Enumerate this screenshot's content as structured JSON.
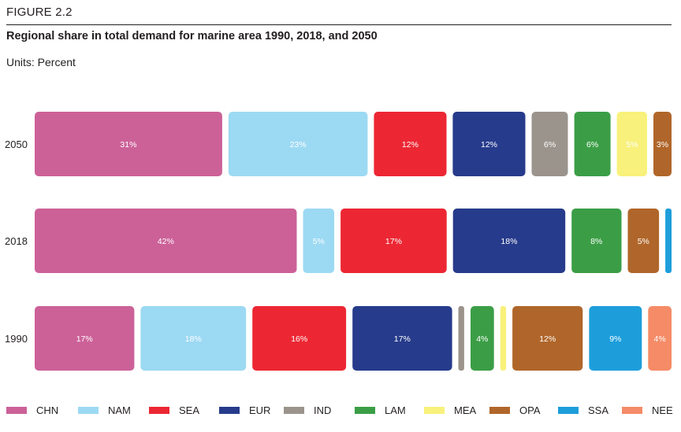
{
  "figure": {
    "label": "FIGURE 2.2",
    "title": "Regional share in total demand for marine area 1990, 2018, and 2050",
    "units": "Units: Percent"
  },
  "chart_data": {
    "type": "bar",
    "orientation": "horizontal-stacked",
    "title": "Regional share in total demand for marine area 1990, 2018, and 2050",
    "units": "Percent",
    "categories": [
      "2050",
      "2018",
      "1990"
    ],
    "series": [
      {
        "name": "CHN",
        "color": "#cc6198",
        "values": [
          31,
          42,
          17
        ],
        "labels": [
          "31%",
          "42%",
          "17%"
        ]
      },
      {
        "name": "NAM",
        "color": "#9cd9f3",
        "values": [
          23,
          5,
          18
        ],
        "labels": [
          "23%",
          "5%",
          "18%"
        ]
      },
      {
        "name": "SEA",
        "color": "#ec2733",
        "values": [
          12,
          17,
          16
        ],
        "labels": [
          "12%",
          "17%",
          "16%"
        ]
      },
      {
        "name": "EUR",
        "color": "#263b8b",
        "values": [
          12,
          18,
          17
        ],
        "labels": [
          "12%",
          "18%",
          "17%"
        ]
      },
      {
        "name": "IND",
        "color": "#9b948c",
        "values": [
          6,
          0,
          1
        ],
        "labels": [
          "6%",
          "",
          ""
        ]
      },
      {
        "name": "LAM",
        "color": "#3b9e46",
        "values": [
          6,
          8,
          4
        ],
        "labels": [
          "6%",
          "8%",
          "4%"
        ]
      },
      {
        "name": "MEA",
        "color": "#f8f17b",
        "values": [
          5,
          0,
          1
        ],
        "labels": [
          "5%",
          "",
          ""
        ]
      },
      {
        "name": "OPA",
        "color": "#b0662a",
        "values": [
          3,
          5,
          12
        ],
        "labels": [
          "3%",
          "5%",
          "12%"
        ]
      },
      {
        "name": "SSA",
        "color": "#1d9edb",
        "values": [
          0,
          1,
          9
        ],
        "labels": [
          "",
          "",
          "9%"
        ]
      },
      {
        "name": "NEE",
        "color": "#f58b67",
        "values": [
          0,
          0,
          4
        ],
        "labels": [
          "",
          "",
          "4%"
        ]
      }
    ],
    "legend_position": "bottom"
  }
}
